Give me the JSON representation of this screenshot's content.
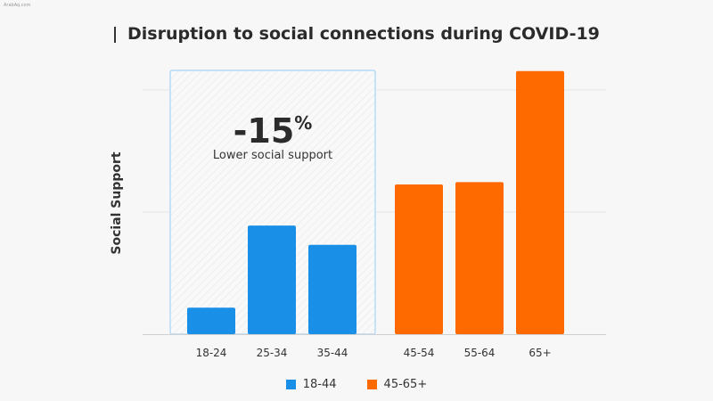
{
  "watermark": "ArabAq.com",
  "chart_data": {
    "type": "bar",
    "title": "Disruption to social connections during COVID-19",
    "ylabel": "Social Support",
    "xlabel": "",
    "categories": [
      "18-24",
      "25-34",
      "35-44",
      "45-54",
      "55-64",
      "65+"
    ],
    "groups": [
      "18-44",
      "18-44",
      "18-44",
      "45-65+",
      "45-65+",
      "45-65+"
    ],
    "values": [
      11,
      45,
      37,
      62,
      63,
      109
    ],
    "ylim": [
      0,
      110
    ],
    "grid": true,
    "legend": [
      {
        "name": "18-44",
        "color": "#1a8fe8"
      },
      {
        "name": "45-65+",
        "color": "#ff6a00"
      }
    ],
    "legend_position": "bottom-center",
    "annotation": {
      "value": "-15",
      "unit": "%",
      "text": "Lower social support",
      "spans": [
        "18-24",
        "25-34",
        "35-44"
      ]
    }
  }
}
